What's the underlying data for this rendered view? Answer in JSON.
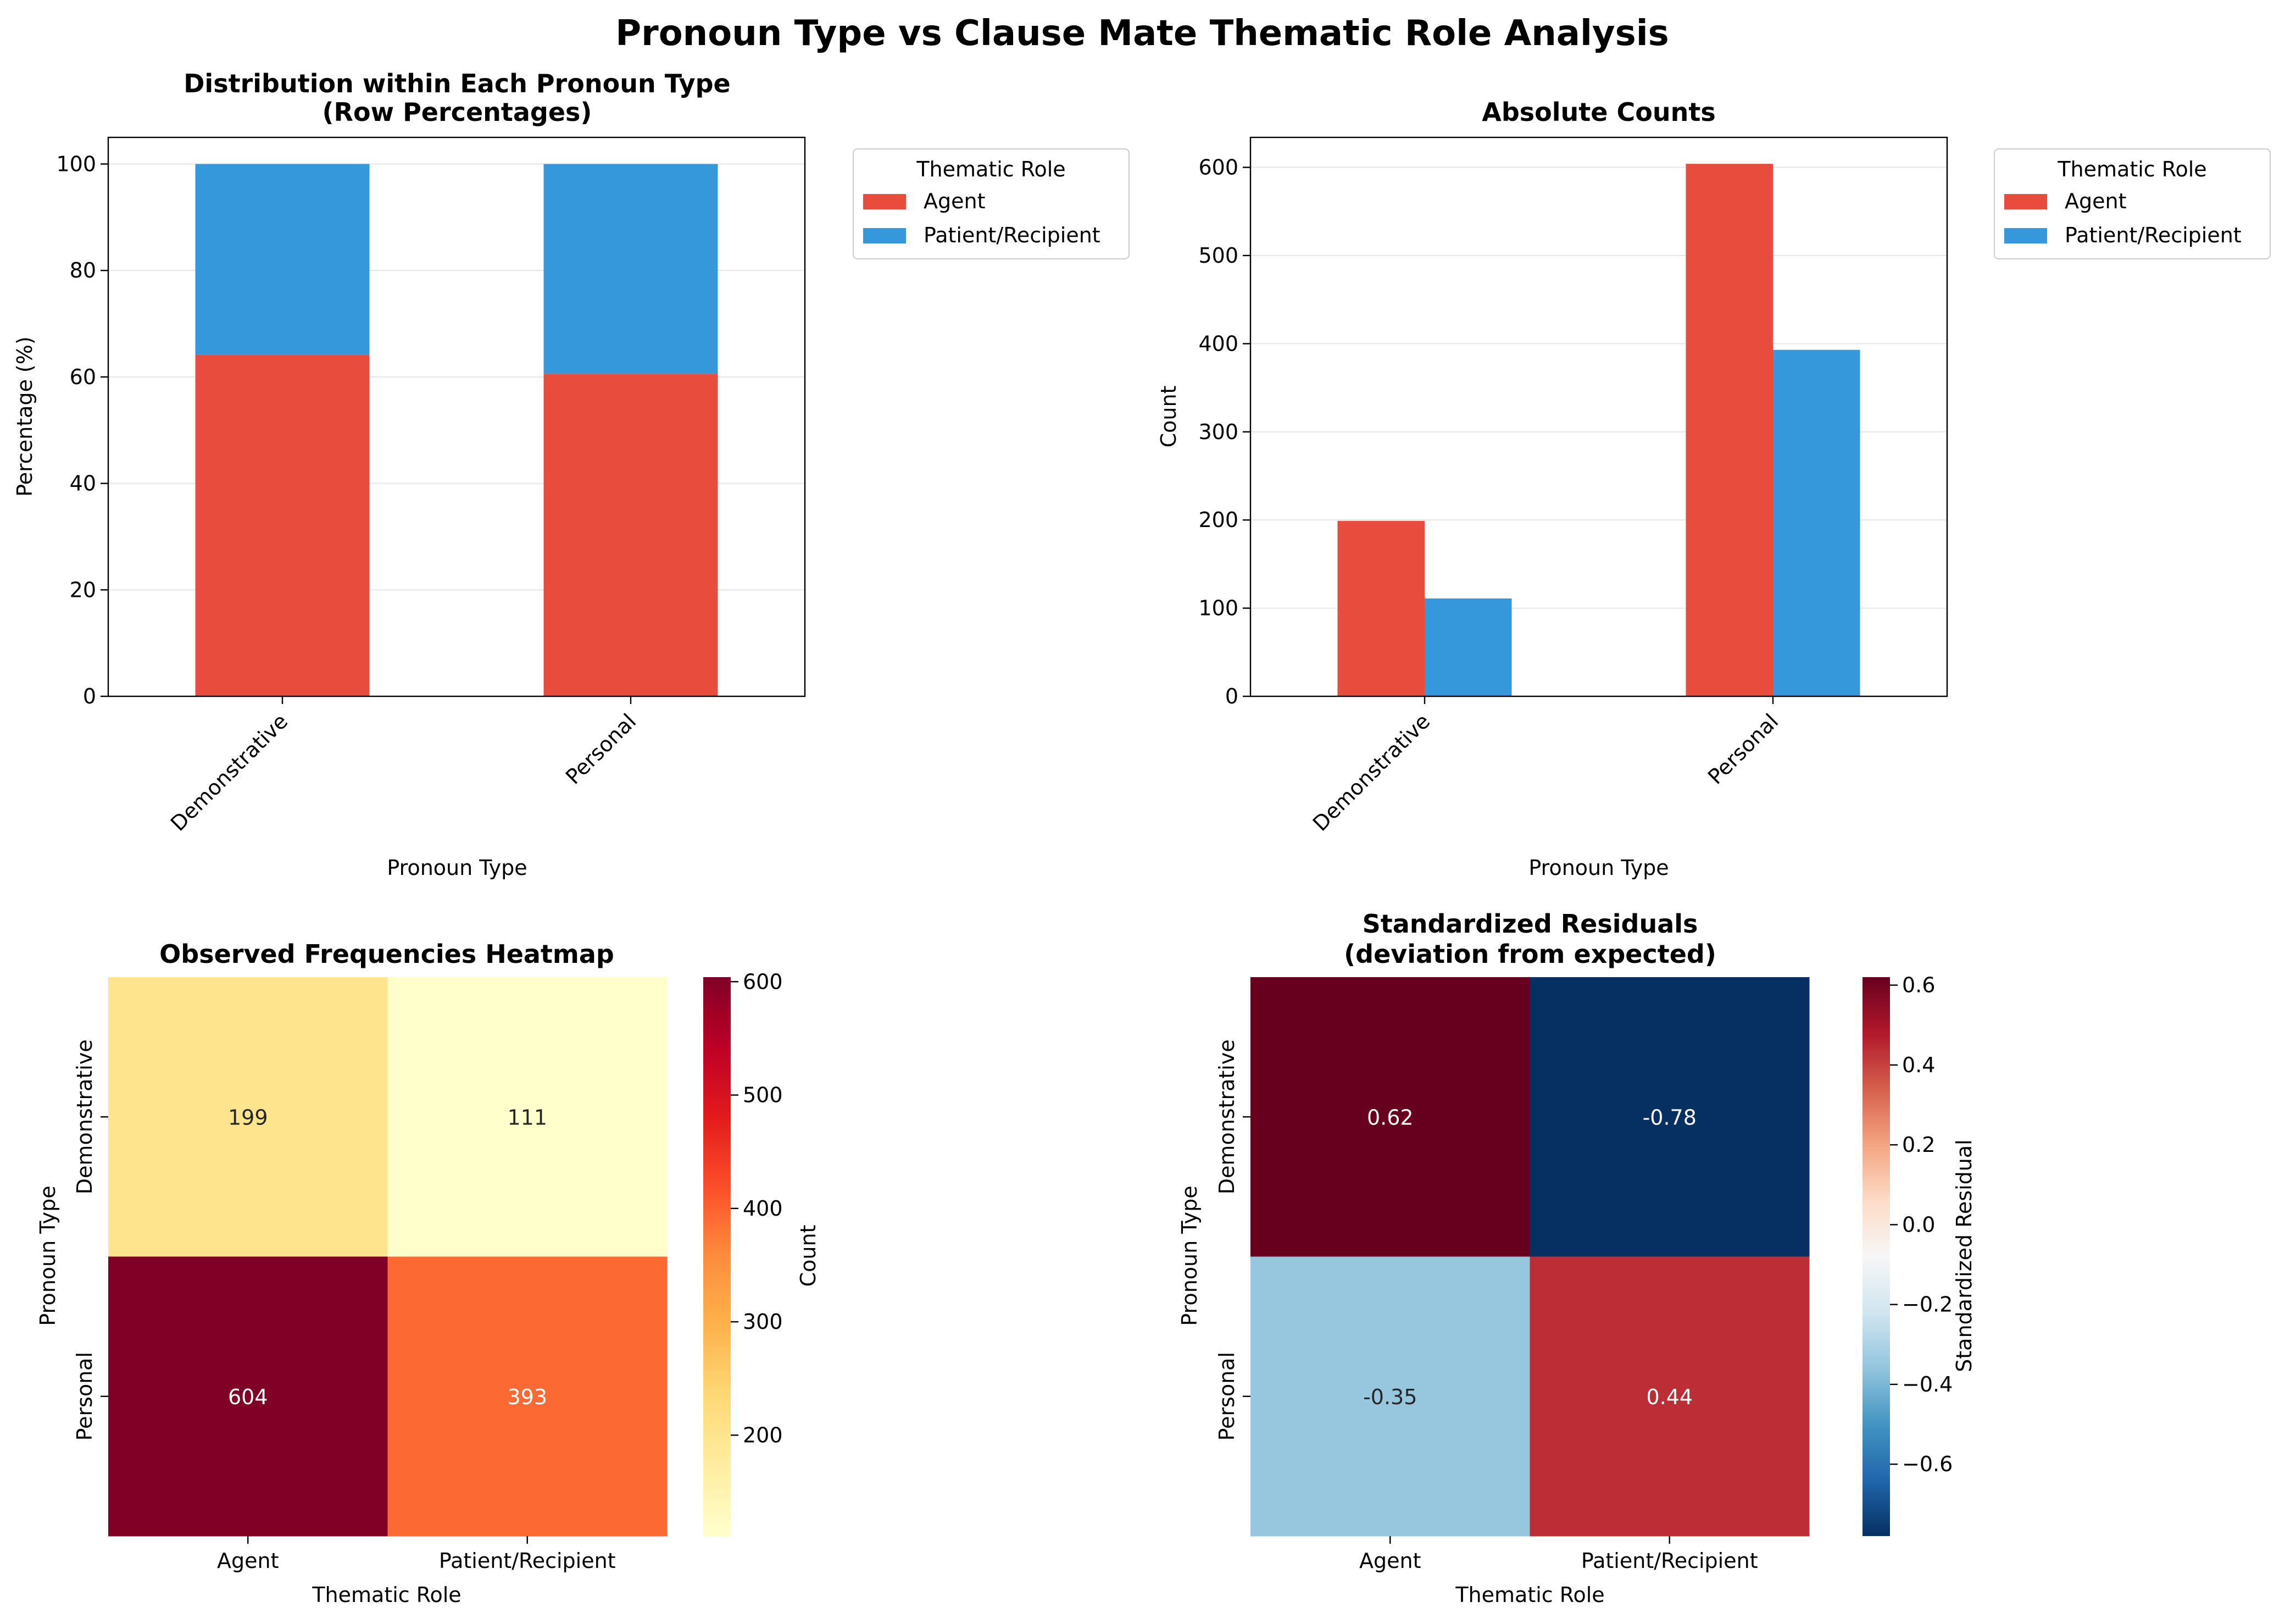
{
  "figure_title": "Pronoun Type vs Clause Mate Thematic Role Analysis",
  "colors": {
    "agent": "#e74c3c",
    "patient": "#3498db",
    "grid": "#e6e6e6"
  },
  "chart_data": [
    {
      "type": "bar",
      "stacked": true,
      "title_line1": "Distribution within Each Pronoun Type",
      "title_line2": "(Row Percentages)",
      "xlabel": "Pronoun Type",
      "ylabel": "Percentage (%)",
      "categories": [
        "Demonstrative",
        "Personal"
      ],
      "series": [
        {
          "name": "Agent",
          "values": [
            64.19,
            60.58
          ]
        },
        {
          "name": "Patient/Recipient",
          "values": [
            35.81,
            39.42
          ]
        }
      ],
      "ylim": [
        0,
        105
      ],
      "yticks": [
        0,
        20,
        40,
        60,
        80,
        100
      ],
      "legend_title": "Thematic Role",
      "legend_position": "outside-top-right",
      "grid": "y"
    },
    {
      "type": "bar",
      "stacked": false,
      "title": "Absolute Counts",
      "xlabel": "Pronoun Type",
      "ylabel": "Count",
      "categories": [
        "Demonstrative",
        "Personal"
      ],
      "series": [
        {
          "name": "Agent",
          "values": [
            199,
            604
          ]
        },
        {
          "name": "Patient/Recipient",
          "values": [
            111,
            393
          ]
        }
      ],
      "ylim": [
        0,
        634
      ],
      "yticks": [
        0,
        100,
        200,
        300,
        400,
        500,
        600
      ],
      "legend_title": "Thematic Role",
      "legend_position": "outside-top-right",
      "grid": "y"
    },
    {
      "type": "heatmap",
      "title": "Observed Frequencies Heatmap",
      "xlabel": "Thematic Role",
      "ylabel": "Pronoun Type",
      "x_categories": [
        "Agent",
        "Patient/Recipient"
      ],
      "y_categories": [
        "Demonstrative",
        "Personal"
      ],
      "values": [
        [
          199,
          111
        ],
        [
          604,
          393
        ]
      ],
      "labels": [
        [
          "199",
          "111"
        ],
        [
          "604",
          "393"
        ]
      ],
      "colormap": "YlOrRd",
      "vmin": 111,
      "vmax": 604,
      "colorbar_label": "Count",
      "colorbar_ticks": [
        200,
        300,
        400,
        500,
        600
      ]
    },
    {
      "type": "heatmap",
      "title_line1": "Standardized Residuals",
      "title_line2": "(deviation from expected)",
      "xlabel": "Thematic Role",
      "ylabel": "Pronoun Type",
      "x_categories": [
        "Agent",
        "Patient/Recipient"
      ],
      "y_categories": [
        "Demonstrative",
        "Personal"
      ],
      "values": [
        [
          0.62,
          -0.78
        ],
        [
          -0.35,
          0.44
        ]
      ],
      "labels": [
        [
          "0.62",
          "-0.78"
        ],
        [
          "-0.35",
          "0.44"
        ]
      ],
      "colormap": "RdBu_r",
      "vmin": -0.78,
      "vmax": 0.62,
      "colorbar_label": "Standardized Residual",
      "colorbar_ticks": [
        -0.6,
        -0.4,
        -0.2,
        0.0,
        0.2,
        0.4,
        0.6
      ],
      "colorbar_tick_labels": [
        "−0.6",
        "−0.4",
        "−0.2",
        "0.0",
        "0.2",
        "0.4",
        "0.6"
      ]
    }
  ]
}
